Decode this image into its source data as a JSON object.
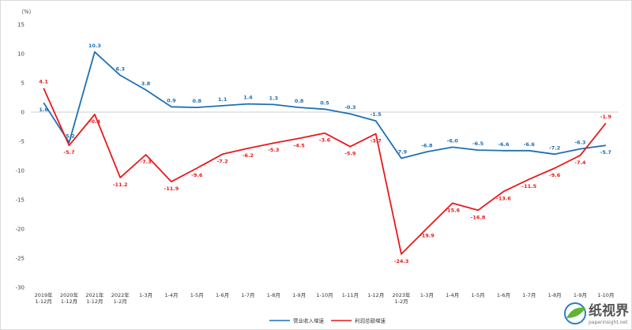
{
  "chart_data": {
    "type": "line",
    "unit_label": "（%）",
    "ylim": [
      -30,
      15
    ],
    "yticks": [
      15,
      10,
      5,
      0,
      -5,
      -10,
      -15,
      -20,
      -25,
      -30
    ],
    "grid": false,
    "legend_position": "bottom-center",
    "categories": [
      [
        "2019年",
        "1-12月"
      ],
      [
        "2020年",
        "1-12月"
      ],
      [
        "2021年",
        "1-12月"
      ],
      [
        "2022年",
        "1-2月"
      ],
      [
        "1-3月"
      ],
      [
        "1-4月"
      ],
      [
        "1-5月"
      ],
      [
        "1-6月"
      ],
      [
        "1-7月"
      ],
      [
        "1-8月"
      ],
      [
        "1-9月"
      ],
      [
        "1-10月"
      ],
      [
        "1-11月"
      ],
      [
        "1-12月"
      ],
      [
        "2023年",
        "1-2月"
      ],
      [
        "1-3月"
      ],
      [
        "1-4月"
      ],
      [
        "1-5月"
      ],
      [
        "1-6月"
      ],
      [
        "1-7月"
      ],
      [
        "1-8月"
      ],
      [
        "1-9月"
      ],
      [
        "1-10月"
      ]
    ],
    "series": [
      {
        "name": "营业收入增速",
        "color": "#1f6fb4",
        "values": [
          1.6,
          -5.2,
          10.3,
          6.3,
          3.8,
          0.9,
          0.8,
          1.1,
          1.4,
          1.3,
          0.8,
          0.5,
          -0.3,
          -1.5,
          -7.9,
          -6.8,
          -6.0,
          -6.5,
          -6.6,
          -6.6,
          -7.2,
          -6.3,
          -5.7
        ],
        "labels": [
          "1.6",
          "-5.2",
          "10.3",
          "6.3",
          "3.8",
          "0.9",
          "0.8",
          "1.1",
          "1.4",
          "1.3",
          "0.8",
          "0.5",
          "-0.3",
          "-1.5",
          "-7.9",
          "-6.8",
          "-6.0",
          "-6.5",
          "-6.6",
          "-6.6",
          "-7.2",
          "-6.3",
          "-5.7"
        ]
      },
      {
        "name": "利润总额增速",
        "color": "#e8191b",
        "values": [
          4.1,
          -5.7,
          -0.4,
          -11.2,
          -7.3,
          -11.9,
          -9.6,
          -7.2,
          -6.2,
          -5.3,
          -4.5,
          -3.6,
          -5.9,
          -3.7,
          -24.3,
          -19.9,
          -15.6,
          -16.8,
          -13.6,
          -11.5,
          -9.6,
          -7.4,
          -1.9
        ],
        "labels": [
          "4.1",
          "-5.7",
          "-0.4",
          "-11.2",
          "-7.3",
          "-11.9",
          "-9.6",
          "-7.2",
          "-6.2",
          "-5.3",
          "-4.5",
          "-3.6",
          "-5.9",
          "-3.7",
          "-24.3",
          "-19.9",
          "-15.6",
          "-16.8",
          "-13.6",
          "-11.5",
          "-9.6",
          "-7.4",
          "-1.9"
        ]
      }
    ]
  },
  "watermark": {
    "brand": "纸视界",
    "url": "paperinsight.net",
    "colors": {
      "blue": "#2a7fc4",
      "green": "#5fb632"
    }
  }
}
